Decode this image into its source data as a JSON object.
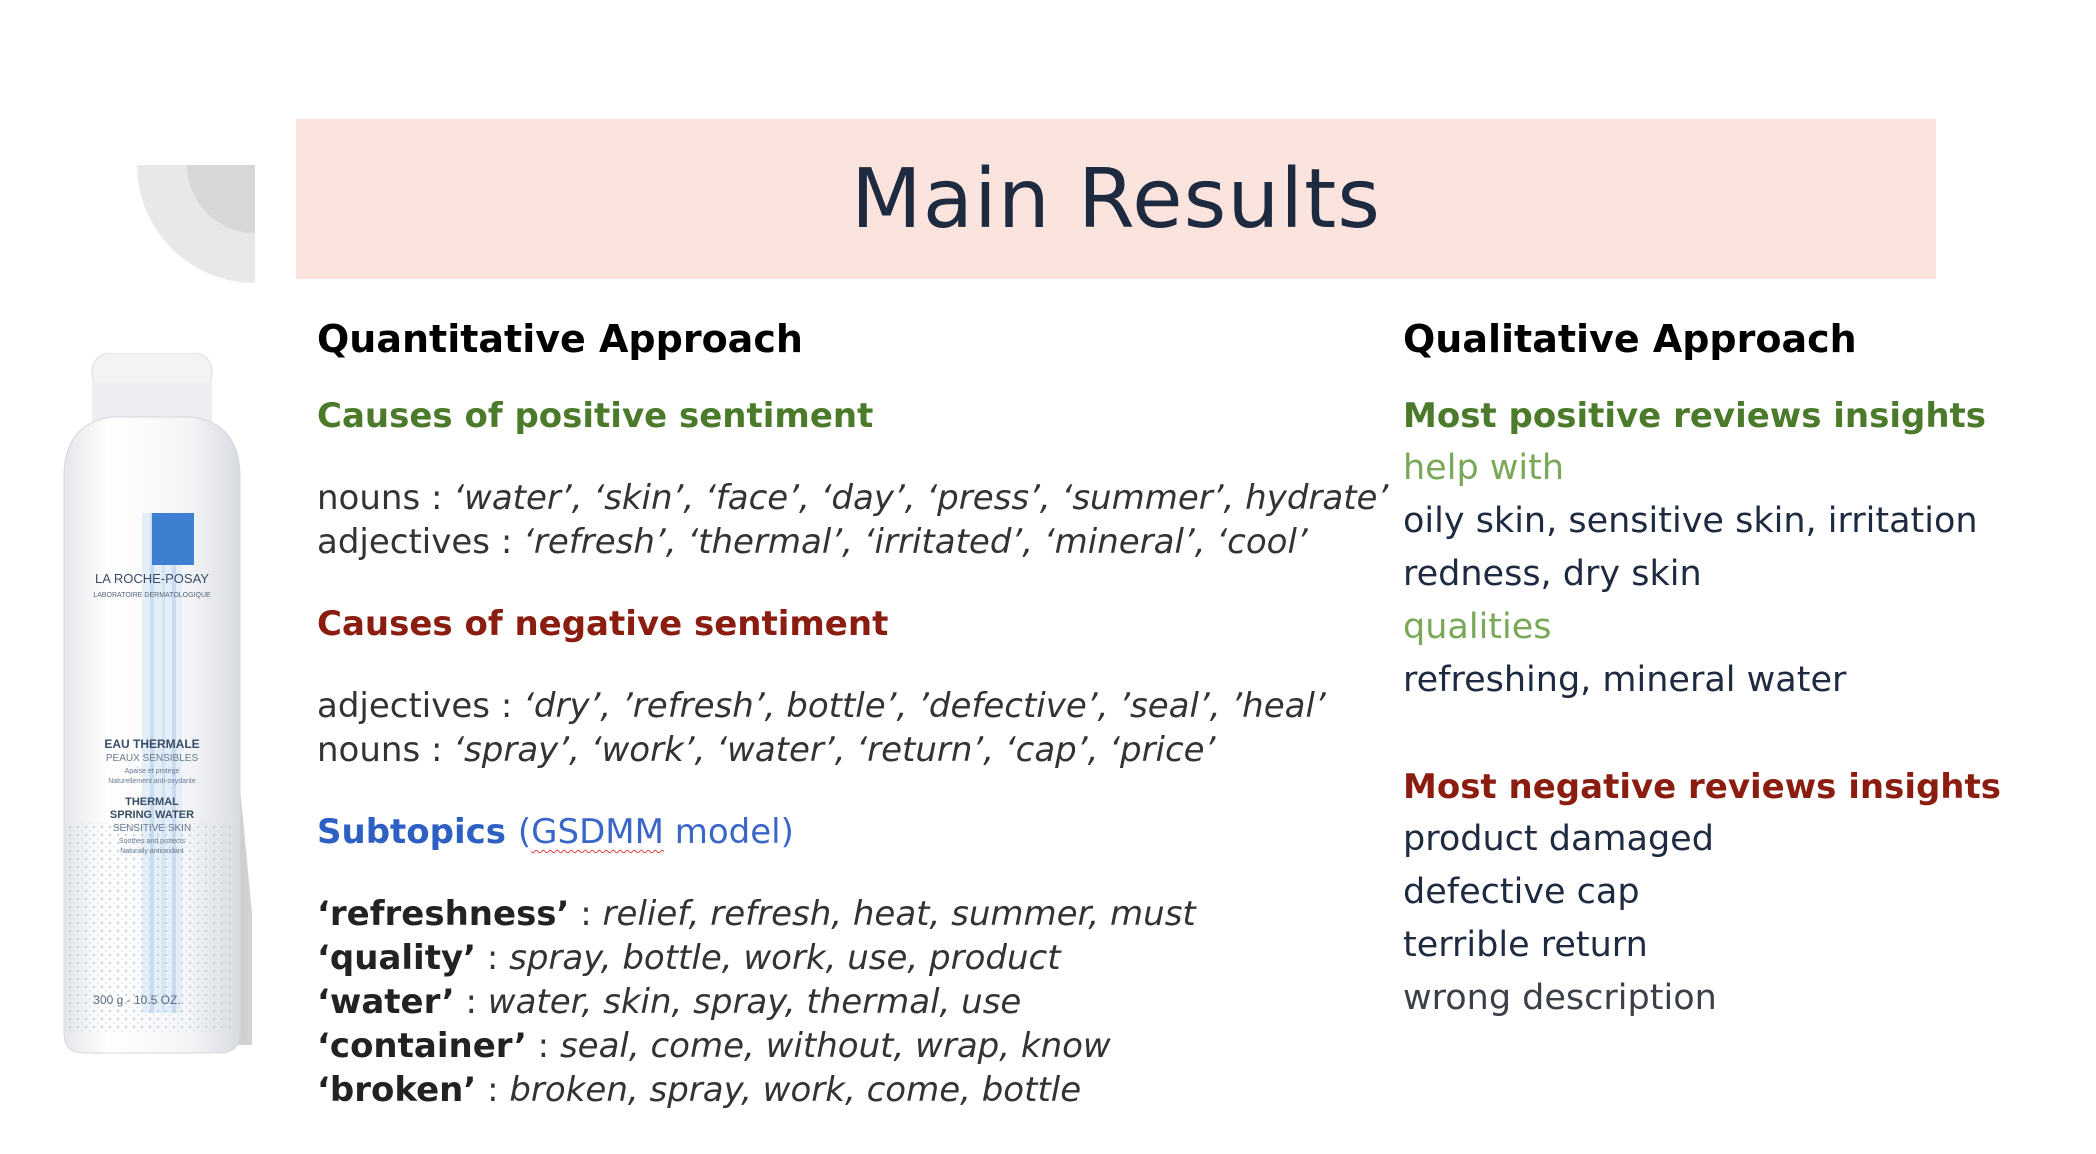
{
  "title": "Main Results",
  "bottle": {
    "brand": "LA ROCHE-POSAY",
    "lab": "LABORATOIRE DERMATOLOGIQUE",
    "name_fr": "EAU THERMALE",
    "skin_fr": "PEAUX SENSIBLES",
    "desc_fr_1": "Apaise et protège",
    "desc_fr_2": "Naturellement anti-oxydante",
    "name_en_1": "THERMAL",
    "name_en_2": "SPRING WATER",
    "skin_en": "SENSITIVE SKIN",
    "desc_en_1": "Soothes and protects",
    "desc_en_2": "Naturally antioxidant",
    "volume": "300 g - 10.5 OZ."
  },
  "quantitative": {
    "heading": "Quantitative Approach",
    "positive_heading": "Causes of positive sentiment",
    "positive_lines": [
      {
        "label": "nouns : ",
        "terms": "‘water’,  ‘skin’, ‘face’, ‘day’, ‘press’, ‘summer’, hydrate’"
      },
      {
        "label": "adjectives : ",
        "terms": "‘refresh’, ‘thermal’, ‘irritated’, ‘mineral’, ‘cool’"
      }
    ],
    "negative_heading": "Causes of negative sentiment",
    "negative_lines": [
      {
        "label": "adjectives : ",
        "terms": "‘dry’, ’refresh’, bottle’, ’defective’, ’seal’, ’heal’"
      },
      {
        "label": "nouns : ",
        "terms": "‘spray’, ‘work’, ‘water’, ‘return’, ‘cap’, ‘price’"
      }
    ],
    "subtopics_heading": "Subtopics",
    "subtopics_note_open": "(",
    "subtopics_note_model": "GSDMM",
    "subtopics_note_rest": " model)",
    "subtopics": [
      {
        "key": "‘refreshness’",
        "sep": " : ",
        "terms": "relief, refresh, heat, summer, must"
      },
      {
        "key": "‘quality’",
        "sep": " : ",
        "terms": "spray, bottle, work, use, product"
      },
      {
        "key": "‘water’",
        "sep": " : ",
        "terms": "water, skin, spray, thermal, use"
      },
      {
        "key": "‘container’",
        "sep": " : ",
        "terms": "seal, come, without, wrap, know"
      },
      {
        "key": "‘broken’",
        "sep": " : ",
        "terms": "broken, spray, work, come, bottle"
      }
    ]
  },
  "qualitative": {
    "heading": "Qualitative Approach",
    "positive_heading": "Most positive reviews insights",
    "help_label": "help with",
    "help_lines": [
      "oily skin, sensitive skin, irritation",
      "redness, dry skin"
    ],
    "qualities_label": "qualities",
    "qualities_lines": [
      "refreshing, mineral water"
    ],
    "negative_heading": "Most negative reviews insights",
    "negative_lines": [
      "product damaged",
      "defective cap",
      "terrible return",
      "wrong description"
    ]
  },
  "colors": {
    "banner": "#fbe4de",
    "title": "#1d2a3f",
    "positive": "#4a7a2a",
    "positive_light": "#78a858",
    "negative": "#8a1c10",
    "subtopic": "#2e60c4"
  }
}
